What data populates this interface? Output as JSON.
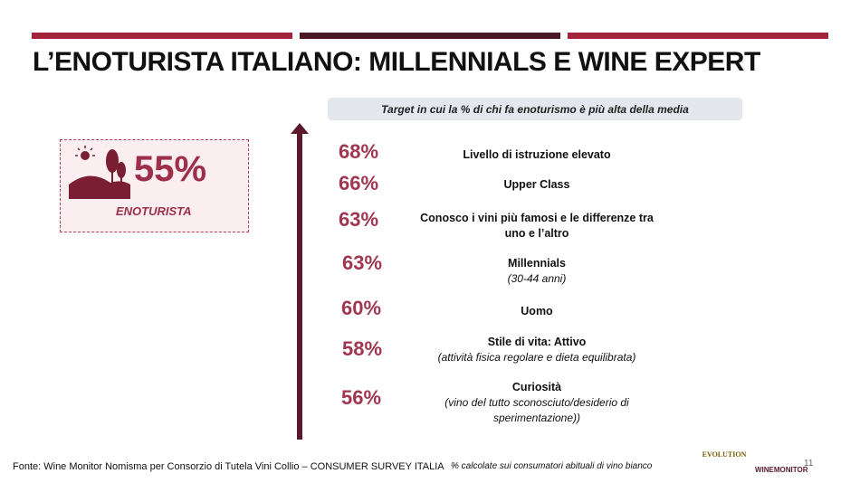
{
  "header": {
    "title": "L’ENOTURISTA ITALIANO: MILLENNIALS E WINE EXPERT"
  },
  "badge": {
    "value": "55%",
    "label": "ENOTURISTA"
  },
  "panel": {
    "heading": "Target in cui la % di chi fa enoturismo è più alta della media",
    "items": [
      {
        "value": "68%",
        "label": "Livello di istruzione elevato"
      },
      {
        "value": "66%",
        "label": "Upper Class"
      },
      {
        "value": "63%",
        "label": "Conosco i vini più famosi e le differenze tra uno e l’altro"
      },
      {
        "value": "63%",
        "label": "Millennials",
        "note": "(30-44 anni)"
      },
      {
        "value": "60%",
        "label": "Uomo"
      },
      {
        "value": "58%",
        "label": "Stile di vita: Attivo",
        "note": "(attività fisica regolare e dieta equilibrata)"
      },
      {
        "value": "56%",
        "label": "Curiosità",
        "note": "(vino del tutto sconosciuto/desiderio di sperimentazione))"
      }
    ]
  },
  "footer": {
    "source": "Fonte: Wine Monitor Nomisma per Consorzio di Tutela Vini Collio – CONSUMER SURVEY ITALIA",
    "note": "% calcolate sui consumatori abituali di vino bianco",
    "logo_left": "EVOLUTION",
    "logo_right": "WINEMONITOR",
    "page": "11"
  }
}
